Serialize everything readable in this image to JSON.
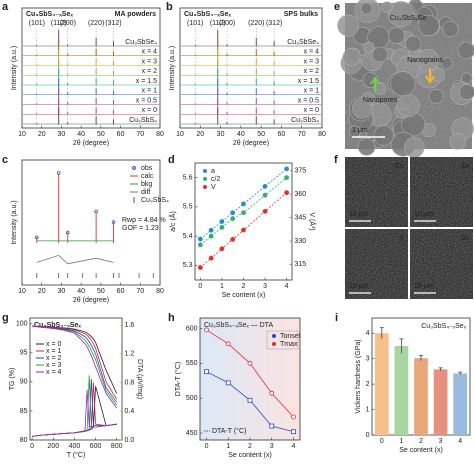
{
  "chart_data": [
    {
      "label": "a",
      "type": "xrd",
      "title": "Cu₃SbS₄₋ₓSeₓ",
      "annotation": "MA powders",
      "xlabel": "2θ (degree)",
      "ylabel": "Intensity (a.u.)",
      "xlim": [
        10,
        80
      ],
      "xticks": [
        10,
        20,
        30,
        40,
        50,
        60,
        70,
        80
      ],
      "peaks": [
        17.5,
        28.6,
        33.2,
        47.6,
        56.4
      ],
      "peak_labels": [
        "(101)",
        "(112)",
        "(200)",
        "(220)",
        "(312)"
      ],
      "series": [
        {
          "name": "Cu₃SbSe₄",
          "color": "#555555",
          "values": [
            6,
            100,
            10,
            50,
            30
          ]
        },
        {
          "name": "x = 4",
          "color": "#b5651d",
          "values": [
            8,
            100,
            14,
            45,
            28
          ]
        },
        {
          "name": "x = 3",
          "color": "#e0a020",
          "values": [
            8,
            100,
            14,
            44,
            28
          ]
        },
        {
          "name": "x = 2",
          "color": "#7ab648",
          "values": [
            8,
            100,
            15,
            44,
            27
          ]
        },
        {
          "name": "x = 1.5",
          "color": "#2aa8a0",
          "values": [
            8,
            100,
            15,
            43,
            27
          ]
        },
        {
          "name": "x = 1",
          "color": "#3a6fc0",
          "values": [
            8,
            100,
            15,
            43,
            26
          ]
        },
        {
          "name": "x = 0.5",
          "color": "#8a4fb0",
          "values": [
            8,
            100,
            16,
            42,
            26
          ]
        },
        {
          "name": "x = 0",
          "color": "#d04060",
          "values": [
            8,
            100,
            16,
            42,
            25
          ]
        },
        {
          "name": "Cu₃SbS₄",
          "color": "#555555",
          "values": [
            6,
            100,
            12,
            48,
            28
          ]
        }
      ]
    },
    {
      "label": "b",
      "type": "xrd",
      "title": "Cu₃SbS₄₋ₓSeₓ",
      "annotation": "SPS bulks",
      "xlabel": "2θ (degree)",
      "ylabel": "Intensity (a.u.)",
      "xlim": [
        10,
        80
      ],
      "xticks": [
        10,
        20,
        30,
        40,
        50,
        60,
        70,
        80
      ],
      "peaks": [
        17.5,
        28.6,
        33.2,
        47.6,
        56.4
      ],
      "peak_labels": [
        "(101)",
        "(112)",
        "(200)",
        "(220)",
        "(312)"
      ],
      "series": [
        {
          "name": "Cu₃SbSe₄",
          "color": "#555555",
          "values": [
            6,
            100,
            10,
            50,
            30
          ]
        },
        {
          "name": "x = 4",
          "color": "#b5651d",
          "values": [
            7,
            100,
            12,
            42,
            26
          ]
        },
        {
          "name": "x = 3",
          "color": "#e0a020",
          "values": [
            7,
            100,
            12,
            42,
            26
          ]
        },
        {
          "name": "x = 2",
          "color": "#7ab648",
          "values": [
            7,
            100,
            13,
            41,
            25
          ]
        },
        {
          "name": "x = 1.5",
          "color": "#2aa8a0",
          "values": [
            7,
            100,
            13,
            41,
            25
          ]
        },
        {
          "name": "x = 1",
          "color": "#3a6fc0",
          "values": [
            7,
            100,
            13,
            40,
            24
          ]
        },
        {
          "name": "x = 0.5",
          "color": "#8a4fb0",
          "values": [
            7,
            100,
            14,
            40,
            24
          ]
        },
        {
          "name": "x = 0",
          "color": "#d04060",
          "values": [
            7,
            100,
            14,
            40,
            24
          ]
        },
        {
          "name": "Cu₃SbS₄",
          "color": "#555555",
          "values": [
            6,
            100,
            12,
            48,
            28
          ]
        }
      ]
    },
    {
      "label": "c",
      "type": "rietveld",
      "xlabel": "2θ (degree)",
      "ylabel": "Intensity (a.u.)",
      "xlim": [
        10,
        80
      ],
      "xticks": [
        10,
        20,
        30,
        40,
        50,
        60,
        70,
        80
      ],
      "peaks": [
        17.5,
        28.6,
        33.2,
        47.6,
        56.4
      ],
      "series": [
        {
          "name": "obs",
          "color": "#1f3fbf",
          "values": [
            8,
            100,
            15,
            45,
            30
          ]
        },
        {
          "name": "calc",
          "color": "#e03030",
          "values": [
            8,
            98,
            15,
            44,
            30
          ]
        },
        {
          "name": "bkg",
          "color": "#2a9a3a",
          "values": [
            3,
            3,
            3,
            3,
            3
          ]
        },
        {
          "name": "diff",
          "color": "#777777",
          "values": [
            -1,
            4,
            -2,
            2,
            -1
          ]
        }
      ],
      "phase": "Cu₃SbS₄",
      "phase_color": "#7030a0",
      "bragg_positions": [
        17.5,
        28.6,
        33.2,
        40.8,
        47.6,
        56.4,
        59.2,
        69.4,
        76.6
      ],
      "annotations": [
        "Rwp = 4.84 %",
        "GOF = 1.23"
      ]
    },
    {
      "label": "d",
      "type": "line",
      "xlabel": "Se content (x)",
      "ylabel": "a/c (Å)",
      "y2label": "V (Å³)",
      "y2color": "#e03030",
      "x": [
        0,
        0.5,
        1,
        1.5,
        2,
        3,
        4
      ],
      "xlim": [
        -0.25,
        4.25
      ],
      "xticks": [
        0,
        1,
        2,
        3,
        4
      ],
      "ylim": [
        5.25,
        5.65
      ],
      "yticks": [
        5.3,
        5.4,
        5.5,
        5.6
      ],
      "y2lim": [
        305,
        380
      ],
      "y2ticks": [
        315,
        330,
        345,
        360,
        375
      ],
      "legend": "upper left",
      "series": [
        {
          "name": "a",
          "color": "#2a8ad0",
          "values": [
            5.39,
            5.42,
            5.45,
            5.48,
            5.51,
            5.57,
            5.63
          ]
        },
        {
          "name": "c/2",
          "color": "#30b070",
          "values": [
            5.37,
            5.4,
            5.43,
            5.46,
            5.48,
            5.54,
            5.6
          ]
        },
        {
          "name": "V",
          "color": "#e03030",
          "axis": "y2",
          "values": [
            313,
            319,
            325,
            331,
            337,
            349,
            361
          ]
        }
      ]
    },
    {
      "label": "g",
      "type": "thermal",
      "title": "Cu₃SbS₄₋ₓSeₓ",
      "xlabel": "T (°C)",
      "ylabel": "TG (%)",
      "y2label": "DTA (μV/mg)",
      "y2color": "#e0a020",
      "x": [
        0,
        100,
        200,
        300,
        400,
        500,
        520,
        540,
        560,
        580,
        600,
        700,
        800
      ],
      "xlim": [
        -20,
        850
      ],
      "xticks": [
        0,
        200,
        400,
        600,
        800
      ],
      "ylim": [
        80,
        101
      ],
      "yticks": [
        80,
        85,
        90,
        95,
        100
      ],
      "y2lim": [
        0,
        1.7
      ],
      "y2ticks": [
        {
          "value": 0,
          "label": "0.0"
        },
        0.4,
        0.8,
        1.2,
        1.6
      ],
      "legend": "center left",
      "series": [
        {
          "name": "x = 0",
          "color": "#222222",
          "values": [
            99.6,
            99.5,
            99.4,
            99.3,
            99.1,
            98.6,
            98.4,
            98.1,
            97.8,
            97.4,
            96.8,
            92,
            88
          ]
        },
        {
          "name": "x = 1",
          "color": "#e02020",
          "values": [
            99.6,
            99.5,
            99.4,
            99.2,
            99,
            98.3,
            98,
            97.6,
            97.2,
            96.6,
            95.8,
            90,
            87
          ]
        },
        {
          "name": "x = 2",
          "color": "#2040e0",
          "values": [
            99.6,
            99.4,
            99.3,
            99.1,
            98.8,
            97.8,
            97.4,
            96.9,
            96.3,
            95.6,
            94.8,
            89,
            86.5
          ]
        },
        {
          "name": "x = 3",
          "color": "#20a020",
          "values": [
            99.6,
            99.4,
            99.2,
            99,
            98.6,
            97.2,
            96.7,
            96.1,
            95.4,
            94.6,
            93.8,
            88.5,
            86
          ]
        },
        {
          "name": "x = 4",
          "color": "#a020c0",
          "values": [
            99.6,
            99.4,
            99.2,
            98.9,
            98.4,
            96.6,
            96,
            95.3,
            94.5,
            93.6,
            92.6,
            88,
            85.5
          ]
        },
        {
          "color": "#222222",
          "axis": "y2",
          "values": [
            0.05,
            0.07,
            0.08,
            0.09,
            0.1,
            0.12,
            0.13,
            0.14,
            0.15,
            0.18,
            0.75,
            0.2,
            0.22
          ]
        },
        {
          "color": "#e02020",
          "axis": "y2",
          "values": [
            0.05,
            0.07,
            0.08,
            0.09,
            0.1,
            0.12,
            0.13,
            0.14,
            0.16,
            0.8,
            0.22,
            0.2,
            0.22
          ]
        },
        {
          "color": "#2040e0",
          "axis": "y2",
          "values": [
            0.05,
            0.07,
            0.08,
            0.09,
            0.1,
            0.12,
            0.13,
            0.15,
            0.85,
            0.2,
            0.2,
            0.2,
            0.22
          ]
        },
        {
          "color": "#20a020",
          "axis": "y2",
          "values": [
            0.05,
            0.07,
            0.08,
            0.09,
            0.1,
            0.12,
            0.14,
            0.9,
            0.2,
            0.18,
            0.18,
            0.2,
            0.22
          ]
        },
        {
          "color": "#a020c0",
          "axis": "y2",
          "values": [
            0.05,
            0.07,
            0.08,
            0.09,
            0.1,
            0.13,
            0.7,
            0.2,
            0.18,
            0.18,
            0.18,
            0.2,
            0.22
          ]
        }
      ]
    },
    {
      "label": "h",
      "type": "line",
      "title": "Cu₃SbS₄₋ₓSeₓ — DTA",
      "annotation": "DTA-T (°C)",
      "xlabel": "Se content (x)",
      "ylabel": "DTA-T (°C)",
      "x": [
        0,
        1,
        2,
        3,
        4
      ],
      "xlim": [
        -0.3,
        4.3
      ],
      "xticks": [
        0,
        1,
        2,
        3,
        4
      ],
      "ylim": [
        440,
        615
      ],
      "yticks": [
        450,
        500,
        550,
        600
      ],
      "legend": "upper right",
      "series": [
        {
          "name": "Tonset",
          "color": "#2050c0",
          "values": [
            538,
            522,
            497,
            460,
            452
          ]
        },
        {
          "name": "Tmax",
          "color": "#e03030",
          "values": [
            598,
            578,
            550,
            507,
            473
          ]
        }
      ]
    },
    {
      "label": "i",
      "type": "bar",
      "title": "Cu₃SbS₄₋ₓSeₓ",
      "xlabel": "Se content (x)",
      "ylabel": "Vickers hardness (GPa)",
      "categories": [
        "0",
        "1",
        "2",
        "3",
        "4"
      ],
      "values": [
        4.0,
        3.5,
        3.02,
        2.58,
        2.42
      ],
      "errors": [
        0.22,
        0.28,
        0.1,
        0.06,
        0.05
      ],
      "colors": [
        "#f6c08a",
        "#a8d5a0",
        "#e8a87c",
        "#e89080",
        "#9ab9e0"
      ],
      "ylim": [
        0,
        4.6
      ],
      "yticks": [
        0,
        1,
        2,
        3,
        4
      ]
    }
  ],
  "images": [
    {
      "label": "e",
      "title": "Cu₃SbS₃Se",
      "annotations": [
        "Nanograins",
        "Nanopores"
      ],
      "scale_bar": "1 μm"
    },
    {
      "label": "f",
      "maps": [
        "Cu",
        "Sb",
        "S",
        "Se"
      ],
      "scale_bar": "10 μm"
    }
  ]
}
